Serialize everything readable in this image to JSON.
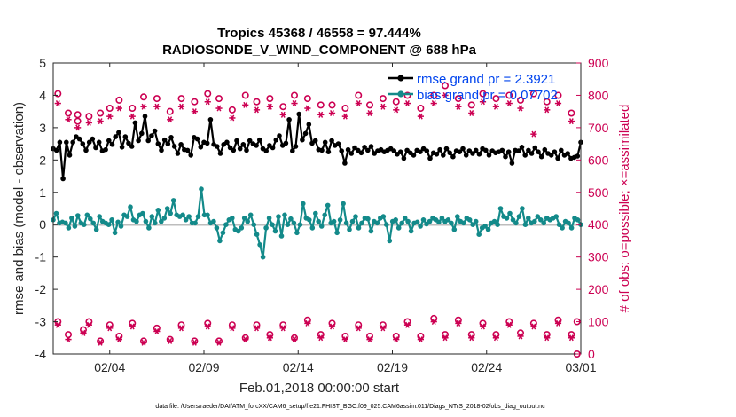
{
  "chart_data": {
    "type": "line",
    "title_line1": "Tropics 45368 / 46558 = 97.444%",
    "title_line2": "RADIOSONDE_V_WIND_COMPONENT @ 688 hPa",
    "xlabel": "Feb.01,2018 00:00:00 start",
    "ylabel_left": "rmse and bias (model - observation)",
    "ylabel_right": "# of obs: o=possible; ×=assimilated",
    "xlim": [
      0,
      28
    ],
    "ylim_left": [
      -4,
      5
    ],
    "ylim_right": [
      0,
      900
    ],
    "x_tick_values": [
      3,
      8,
      13,
      18,
      23,
      28
    ],
    "x_tick_labels": [
      "02/04",
      "02/09",
      "02/14",
      "02/19",
      "02/24",
      "03/01"
    ],
    "y_left_ticks": [
      "-4",
      "-3",
      "-2",
      "-1",
      "0",
      "1",
      "2",
      "3",
      "4",
      "5"
    ],
    "y_right_ticks": [
      "0",
      "100",
      "200",
      "300",
      "400",
      "500",
      "600",
      "700",
      "800",
      "900"
    ],
    "legend": [
      {
        "label": "rmse grand pr = 2.3921",
        "color": "#000000"
      },
      {
        "label": "bias grand pr = 0.07702",
        "color": "#00a0a0"
      }
    ],
    "colors": {
      "rmse": "#000000",
      "bias": "#138a8a",
      "obs": "#cc0052",
      "zero_line": "#bdbdbd",
      "legend_text": "#0044ee"
    },
    "series": [
      {
        "name": "rmse",
        "values": [
          2.35,
          2.3,
          2.55,
          1.42,
          2.55,
          2.15,
          2.55,
          2.72,
          2.65,
          2.5,
          2.3,
          2.55,
          2.65,
          2.38,
          2.55,
          2.28,
          2.32,
          2.6,
          2.48,
          2.72,
          2.85,
          2.4,
          2.72,
          2.52,
          2.42,
          3.15,
          2.6,
          2.82,
          3.35,
          2.6,
          2.75,
          2.9,
          2.5,
          2.3,
          2.62,
          2.5,
          2.7,
          2.42,
          2.2,
          2.48,
          2.32,
          2.3,
          2.15,
          2.7,
          2.65,
          2.4,
          2.55,
          2.52,
          3.25,
          2.48,
          2.42,
          2.2,
          2.48,
          2.55,
          2.38,
          2.3,
          2.6,
          2.35,
          2.48,
          2.3,
          2.6,
          2.5,
          2.45,
          2.62,
          2.35,
          2.28,
          2.45,
          2.38,
          2.62,
          2.75,
          2.45,
          2.52,
          3.25,
          2.28,
          2.42,
          3.42,
          2.62,
          2.82,
          3.1,
          2.52,
          2.6,
          2.32,
          2.3,
          2.55,
          2.25,
          2.6,
          2.45,
          2.5,
          2.28,
          1.9,
          2.32,
          2.2,
          2.38,
          2.3,
          2.22,
          2.4,
          2.3,
          2.42,
          2.2,
          2.28,
          2.32,
          2.25,
          2.3,
          2.35,
          2.28,
          2.18,
          2.25,
          2.05,
          2.3,
          2.22,
          2.15,
          2.3,
          2.25,
          2.35,
          2.28,
          2.05,
          2.22,
          2.18,
          2.32,
          2.15,
          2.35,
          2.22,
          2.1,
          2.28,
          2.25,
          2.35,
          2.15,
          2.28,
          2.2,
          2.3,
          2.18,
          2.35,
          2.3,
          2.15,
          2.28,
          2.22,
          2.25,
          2.3,
          2.1,
          2.25,
          1.9,
          2.3,
          2.28,
          2.4,
          2.15,
          2.3,
          2.2,
          2.38,
          2.25,
          2.1,
          2.32,
          2.2,
          2.15,
          2.25,
          2.05,
          2.3,
          2.15,
          2.2,
          2.05,
          2.08,
          2.12,
          2.55
        ]
      },
      {
        "name": "bias",
        "values": [
          0.15,
          0.35,
          0.05,
          0.08,
          0.05,
          -0.1,
          0.2,
          -0.05,
          0.28,
          0.05,
          0.0,
          0.3,
          0.18,
          0.05,
          -0.15,
          0.25,
          0.1,
          0.05,
          0.0,
          0.15,
          -0.25,
          0.08,
          -0.05,
          0.3,
          0.25,
          0.55,
          0.15,
          0.1,
          0.3,
          0.35,
          0.1,
          -0.1,
          0.25,
          0.05,
          0.45,
          0.1,
          0.2,
          0.5,
          0.35,
          0.75,
          0.3,
          0.25,
          0.3,
          0.15,
          0.25,
          0.05,
          0.05,
          0.25,
          1.1,
          0.3,
          0.3,
          0.05,
          0.1,
          -0.1,
          -0.5,
          -0.25,
          0.0,
          0.15,
          0.2,
          -0.15,
          -0.2,
          -0.1,
          0.2,
          0.1,
          0.3,
          0.0,
          -0.3,
          -0.62,
          -1.0,
          -0.1,
          0.2,
          0.0,
          -0.2,
          0.25,
          -0.35,
          0.3,
          0.0,
          0.18,
          0.05,
          -0.25,
          0.0,
          0.65,
          0.2,
          0.15,
          -0.1,
          0.35,
          0.1,
          -0.05,
          0.3,
          0.6,
          0.05,
          0.1,
          -0.25,
          0.15,
          0.65,
          0.05,
          -0.15,
          0.1,
          0.25,
          -0.1,
          0.05,
          0.2,
          0.18,
          -0.2,
          0.1,
          0.05,
          0.2,
          0.25,
          0.0,
          -0.5,
          0.1,
          0.15,
          -0.1,
          0.05,
          0.2,
          0.1,
          -0.2,
          0.05,
          0.08,
          -0.05,
          0.15,
          0.02,
          0.1,
          0.2,
          0.15,
          0.08,
          0.2,
          0.1,
          0.15,
          0.05,
          -0.15,
          0.25,
          0.1,
          0.05,
          0.2,
          0.15,
          0.0,
          0.1,
          -0.3,
          -0.1,
          -0.05,
          -0.15,
          0.05,
          0.1,
          0.0,
          0.5,
          0.25,
          0.2,
          0.35,
          0.15,
          0.05,
          0.25,
          0.5,
          0.0,
          0.2,
          0.05,
          0.1,
          0.25,
          0.15,
          0.05,
          0.2,
          0.15,
          0.2,
          0.25,
          0.0,
          -0.1,
          0.1,
          0.05,
          -0.1,
          0.2,
          0.15,
          0.0
        ]
      },
      {
        "name": "obs_possible",
        "points": [
          [
            0.25,
            805
          ],
          [
            0.25,
            100
          ],
          [
            0.8,
            745
          ],
          [
            0.8,
            60
          ],
          [
            1.3,
            720
          ],
          [
            1.3,
            740
          ],
          [
            1.6,
            75
          ],
          [
            1.9,
            735
          ],
          [
            1.9,
            100
          ],
          [
            2.5,
            745
          ],
          [
            2.5,
            40
          ],
          [
            3,
            760
          ],
          [
            3,
            90
          ],
          [
            3.5,
            785
          ],
          [
            3.5,
            55
          ],
          [
            4.2,
            760
          ],
          [
            4.2,
            95
          ],
          [
            4.8,
            795
          ],
          [
            4.8,
            40
          ],
          [
            5.5,
            790
          ],
          [
            5.5,
            80
          ],
          [
            6.2,
            750
          ],
          [
            6.2,
            45
          ],
          [
            6.8,
            790
          ],
          [
            6.8,
            90
          ],
          [
            7.5,
            780
          ],
          [
            7.5,
            40
          ],
          [
            8.2,
            805
          ],
          [
            8.2,
            95
          ],
          [
            8.8,
            790
          ],
          [
            8.8,
            40
          ],
          [
            9.5,
            755
          ],
          [
            9.5,
            90
          ],
          [
            10.2,
            800
          ],
          [
            10.2,
            50
          ],
          [
            10.8,
            780
          ],
          [
            10.8,
            90
          ],
          [
            11.5,
            790
          ],
          [
            11.5,
            60
          ],
          [
            12.2,
            765
          ],
          [
            12.2,
            90
          ],
          [
            12.8,
            800
          ],
          [
            12.8,
            50
          ],
          [
            13.5,
            790
          ],
          [
            13.5,
            105
          ],
          [
            14.2,
            770
          ],
          [
            14.2,
            60
          ],
          [
            14.8,
            770
          ],
          [
            14.8,
            95
          ],
          [
            15.5,
            760
          ],
          [
            15.5,
            55
          ],
          [
            16.2,
            800
          ],
          [
            16.2,
            90
          ],
          [
            16.8,
            770
          ],
          [
            16.8,
            55
          ],
          [
            17.5,
            790
          ],
          [
            17.5,
            90
          ],
          [
            18.2,
            780
          ],
          [
            18.2,
            55
          ],
          [
            18.8,
            800
          ],
          [
            18.8,
            100
          ],
          [
            19.5,
            760
          ],
          [
            19.5,
            55
          ],
          [
            20.2,
            800
          ],
          [
            20.2,
            110
          ],
          [
            20.8,
            830
          ],
          [
            20.8,
            60
          ],
          [
            21.5,
            790
          ],
          [
            21.5,
            105
          ],
          [
            22.2,
            770
          ],
          [
            22.2,
            60
          ],
          [
            22.8,
            805
          ],
          [
            22.8,
            95
          ],
          [
            23.5,
            790
          ],
          [
            23.5,
            60
          ],
          [
            24.2,
            800
          ],
          [
            24.2,
            100
          ],
          [
            24.8,
            785
          ],
          [
            24.8,
            65
          ],
          [
            25.5,
            805
          ],
          [
            25.5,
            95
          ],
          [
            26.2,
            780
          ],
          [
            26.2,
            60
          ],
          [
            26.8,
            800
          ],
          [
            26.8,
            105
          ],
          [
            27.5,
            745
          ],
          [
            27.5,
            60
          ],
          [
            27.8,
            100
          ],
          [
            27.8,
            0
          ]
        ]
      },
      {
        "name": "obs_assimilated",
        "points": [
          [
            0.25,
            775
          ],
          [
            0.25,
            90
          ],
          [
            0.8,
            725
          ],
          [
            0.8,
            45
          ],
          [
            1.3,
            700
          ],
          [
            1.6,
            65
          ],
          [
            1.9,
            715
          ],
          [
            1.9,
            90
          ],
          [
            2.5,
            720
          ],
          [
            2.5,
            35
          ],
          [
            3,
            735
          ],
          [
            3,
            80
          ],
          [
            3.5,
            760
          ],
          [
            3.5,
            45
          ],
          [
            4.2,
            735
          ],
          [
            4.2,
            85
          ],
          [
            4.8,
            765
          ],
          [
            4.8,
            35
          ],
          [
            5.5,
            765
          ],
          [
            5.5,
            70
          ],
          [
            6.2,
            725
          ],
          [
            6.2,
            40
          ],
          [
            6.8,
            765
          ],
          [
            6.8,
            80
          ],
          [
            7.5,
            750
          ],
          [
            7.5,
            35
          ],
          [
            8.2,
            780
          ],
          [
            8.2,
            85
          ],
          [
            8.8,
            760
          ],
          [
            8.8,
            35
          ],
          [
            9.5,
            730
          ],
          [
            9.5,
            80
          ],
          [
            10.2,
            770
          ],
          [
            10.2,
            45
          ],
          [
            10.8,
            755
          ],
          [
            10.8,
            80
          ],
          [
            11.5,
            765
          ],
          [
            11.5,
            50
          ],
          [
            12.2,
            740
          ],
          [
            12.2,
            80
          ],
          [
            12.8,
            775
          ],
          [
            12.8,
            45
          ],
          [
            13.5,
            760
          ],
          [
            13.5,
            95
          ],
          [
            14.2,
            740
          ],
          [
            14.2,
            50
          ],
          [
            14.8,
            745
          ],
          [
            14.8,
            85
          ],
          [
            15.5,
            735
          ],
          [
            15.5,
            45
          ],
          [
            16.2,
            775
          ],
          [
            16.2,
            80
          ],
          [
            16.8,
            745
          ],
          [
            16.8,
            45
          ],
          [
            17.5,
            765
          ],
          [
            17.5,
            80
          ],
          [
            18.2,
            755
          ],
          [
            18.2,
            45
          ],
          [
            18.8,
            775
          ],
          [
            18.8,
            90
          ],
          [
            19.5,
            735
          ],
          [
            19.5,
            45
          ],
          [
            20.2,
            775
          ],
          [
            20.2,
            100
          ],
          [
            20.8,
            800
          ],
          [
            20.8,
            50
          ],
          [
            21.5,
            765
          ],
          [
            21.5,
            95
          ],
          [
            22.2,
            745
          ],
          [
            22.2,
            50
          ],
          [
            22.8,
            780
          ],
          [
            22.8,
            85
          ],
          [
            23.5,
            765
          ],
          [
            23.5,
            50
          ],
          [
            24.2,
            775
          ],
          [
            24.2,
            90
          ],
          [
            24.8,
            760
          ],
          [
            24.8,
            55
          ],
          [
            25.5,
            680
          ],
          [
            25.5,
            85
          ],
          [
            26.2,
            755
          ],
          [
            26.2,
            50
          ],
          [
            26.8,
            775
          ],
          [
            26.8,
            95
          ],
          [
            27.5,
            720
          ],
          [
            27.5,
            50
          ]
        ]
      }
    ]
  },
  "footer": "data file: /Users/raeder/DAI/ATM_forcXX/CAM6_setup/f.e21.FHIST_BGC.f09_025.CAM6assim.011/Diags_NTrS_2018-02/obs_diag_output.nc"
}
